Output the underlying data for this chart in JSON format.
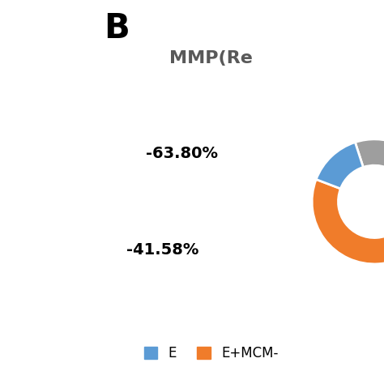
{
  "title": "MMP(Re",
  "label_B": "B",
  "slice_labels": [
    "-63.80%",
    "-41.58%"
  ],
  "slice_values": [
    22.0,
    63.8,
    14.2
  ],
  "slice_colors": [
    "#9e9e9e",
    "#f07c2a",
    "#5b9bd5"
  ],
  "legend_labels": [
    "E",
    "E+MCM-"
  ],
  "legend_colors": [
    "#5b9bd5",
    "#f07c2a"
  ],
  "bg_color": "#ffffff",
  "title_color": "#595959",
  "title_fontsize": 16,
  "label_fontsize": 13,
  "annotation_fontsize": 14,
  "B_fontsize": 30
}
